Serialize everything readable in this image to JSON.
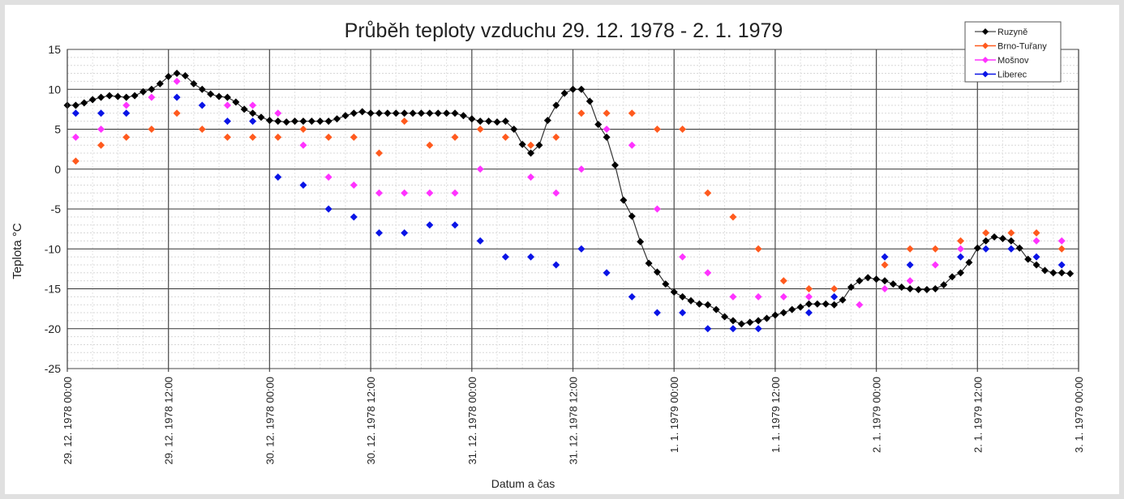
{
  "chart_data": {
    "type": "scatter",
    "title": "Průběh teploty vzduchu 29. 12. 1978 - 2. 1. 1979",
    "xlabel": "Datum a čas",
    "ylabel": "Teplota  °C",
    "ylim": [
      -25,
      15
    ],
    "yticks": [
      15,
      10,
      5,
      0,
      -5,
      -10,
      -15,
      -20,
      -25
    ],
    "x_start": "29. 12. 1978 00:00",
    "x_unit": "hours",
    "xlim_hours": [
      0,
      120
    ],
    "xtick_labels": [
      "29. 12. 1978 00:00",
      "29. 12. 1978 12:00",
      "30. 12. 1978 00:00",
      "30. 12. 1978 12:00",
      "31. 12. 1978 00:00",
      "31. 12. 1978 12:00",
      "1. 1. 1979 00:00",
      "1. 1. 1979 12:00",
      "2. 1. 1979 00:00",
      "2. 1. 1979 12:00",
      "3. 1. 1979 00:00"
    ],
    "grid": true,
    "legend_position": "top-right",
    "series": [
      {
        "name": "Ruzyně",
        "color": "#000000",
        "line": true,
        "x_first_hour": 0,
        "x_step_hours": 1,
        "values": [
          8,
          8,
          8.3,
          8.7,
          9,
          9.2,
          9.1,
          9,
          9.2,
          9.7,
          10,
          10.7,
          11.6,
          12,
          11.7,
          10.7,
          10,
          9.4,
          9.1,
          9,
          8.4,
          7.5,
          7,
          6.5,
          6.1,
          6,
          5.9,
          6,
          6,
          6,
          6,
          6,
          6.3,
          6.7,
          7,
          7.2,
          7,
          7,
          7,
          7,
          7,
          7,
          7,
          7,
          7,
          7,
          7,
          6.7,
          6.3,
          6,
          6,
          5.9,
          6,
          5,
          3.1,
          2,
          3,
          6.1,
          8,
          9.5,
          10,
          10,
          8.5,
          5.6,
          4,
          0.5,
          -3.9,
          -5.9,
          -9.1,
          -11.8,
          -12.9,
          -14.4,
          -15.4,
          -16,
          -16.5,
          -16.9,
          -17,
          -17.6,
          -18.5,
          -19,
          -19.4,
          -19.2,
          -19,
          -18.7,
          -18.3,
          -18,
          -17.6,
          -17.3,
          -16.9,
          -16.9,
          -16.9,
          -17,
          -16.4,
          -14.8,
          -14,
          -13.6,
          -13.8,
          -14,
          -14.4,
          -14.8,
          -15,
          -15.1,
          -15.1,
          -15,
          -14.5,
          -13.5,
          -13,
          -11.7,
          -9.9,
          -9,
          -8.5,
          -8.7,
          -9,
          -9.9,
          -11.3,
          -12,
          -12.7,
          -13,
          -13,
          -13.1
        ]
      },
      {
        "name": "Brno-Tuřany",
        "color": "#ff5a1e",
        "line": false,
        "x_first_hour": 1,
        "x_step_hours": 3,
        "values": [
          1,
          3,
          4,
          5,
          7,
          5,
          4,
          4,
          4,
          5,
          4,
          4,
          2,
          6,
          3,
          4,
          5,
          4,
          3,
          4,
          7,
          7,
          7,
          5,
          5,
          -3,
          -6,
          -10,
          -14,
          -15,
          -15,
          null,
          -12,
          -10,
          -10,
          -9,
          -8,
          -8,
          -8,
          -10
        ]
      },
      {
        "name": "Mošnov",
        "color": "#ff33ff",
        "line": false,
        "x_first_hour": 1,
        "x_step_hours": 3,
        "values": [
          4,
          5,
          8,
          9,
          11,
          null,
          8,
          8,
          7,
          3,
          -1,
          -2,
          -3,
          -3,
          -3,
          -3,
          0,
          null,
          -1,
          -3,
          0,
          5,
          3,
          -5,
          -11,
          -13,
          -16,
          -16,
          -16,
          -16,
          null,
          -17,
          -15,
          -14,
          -12,
          -10,
          null,
          null,
          -9,
          -9
        ]
      },
      {
        "name": "Liberec",
        "color": "#0a14e6",
        "line": false,
        "x_first_hour": 1,
        "x_step_hours": 3,
        "values": [
          7,
          7,
          7,
          null,
          9,
          8,
          6,
          6,
          -1,
          -2,
          -5,
          -6,
          -8,
          -8,
          -7,
          -7,
          -9,
          -11,
          -11,
          -12,
          -10,
          -13,
          -16,
          -18,
          -18,
          -20,
          -20,
          -20,
          null,
          -18,
          -16,
          null,
          -11,
          -12,
          null,
          -11,
          -10,
          -10,
          -11,
          -12
        ]
      }
    ]
  }
}
